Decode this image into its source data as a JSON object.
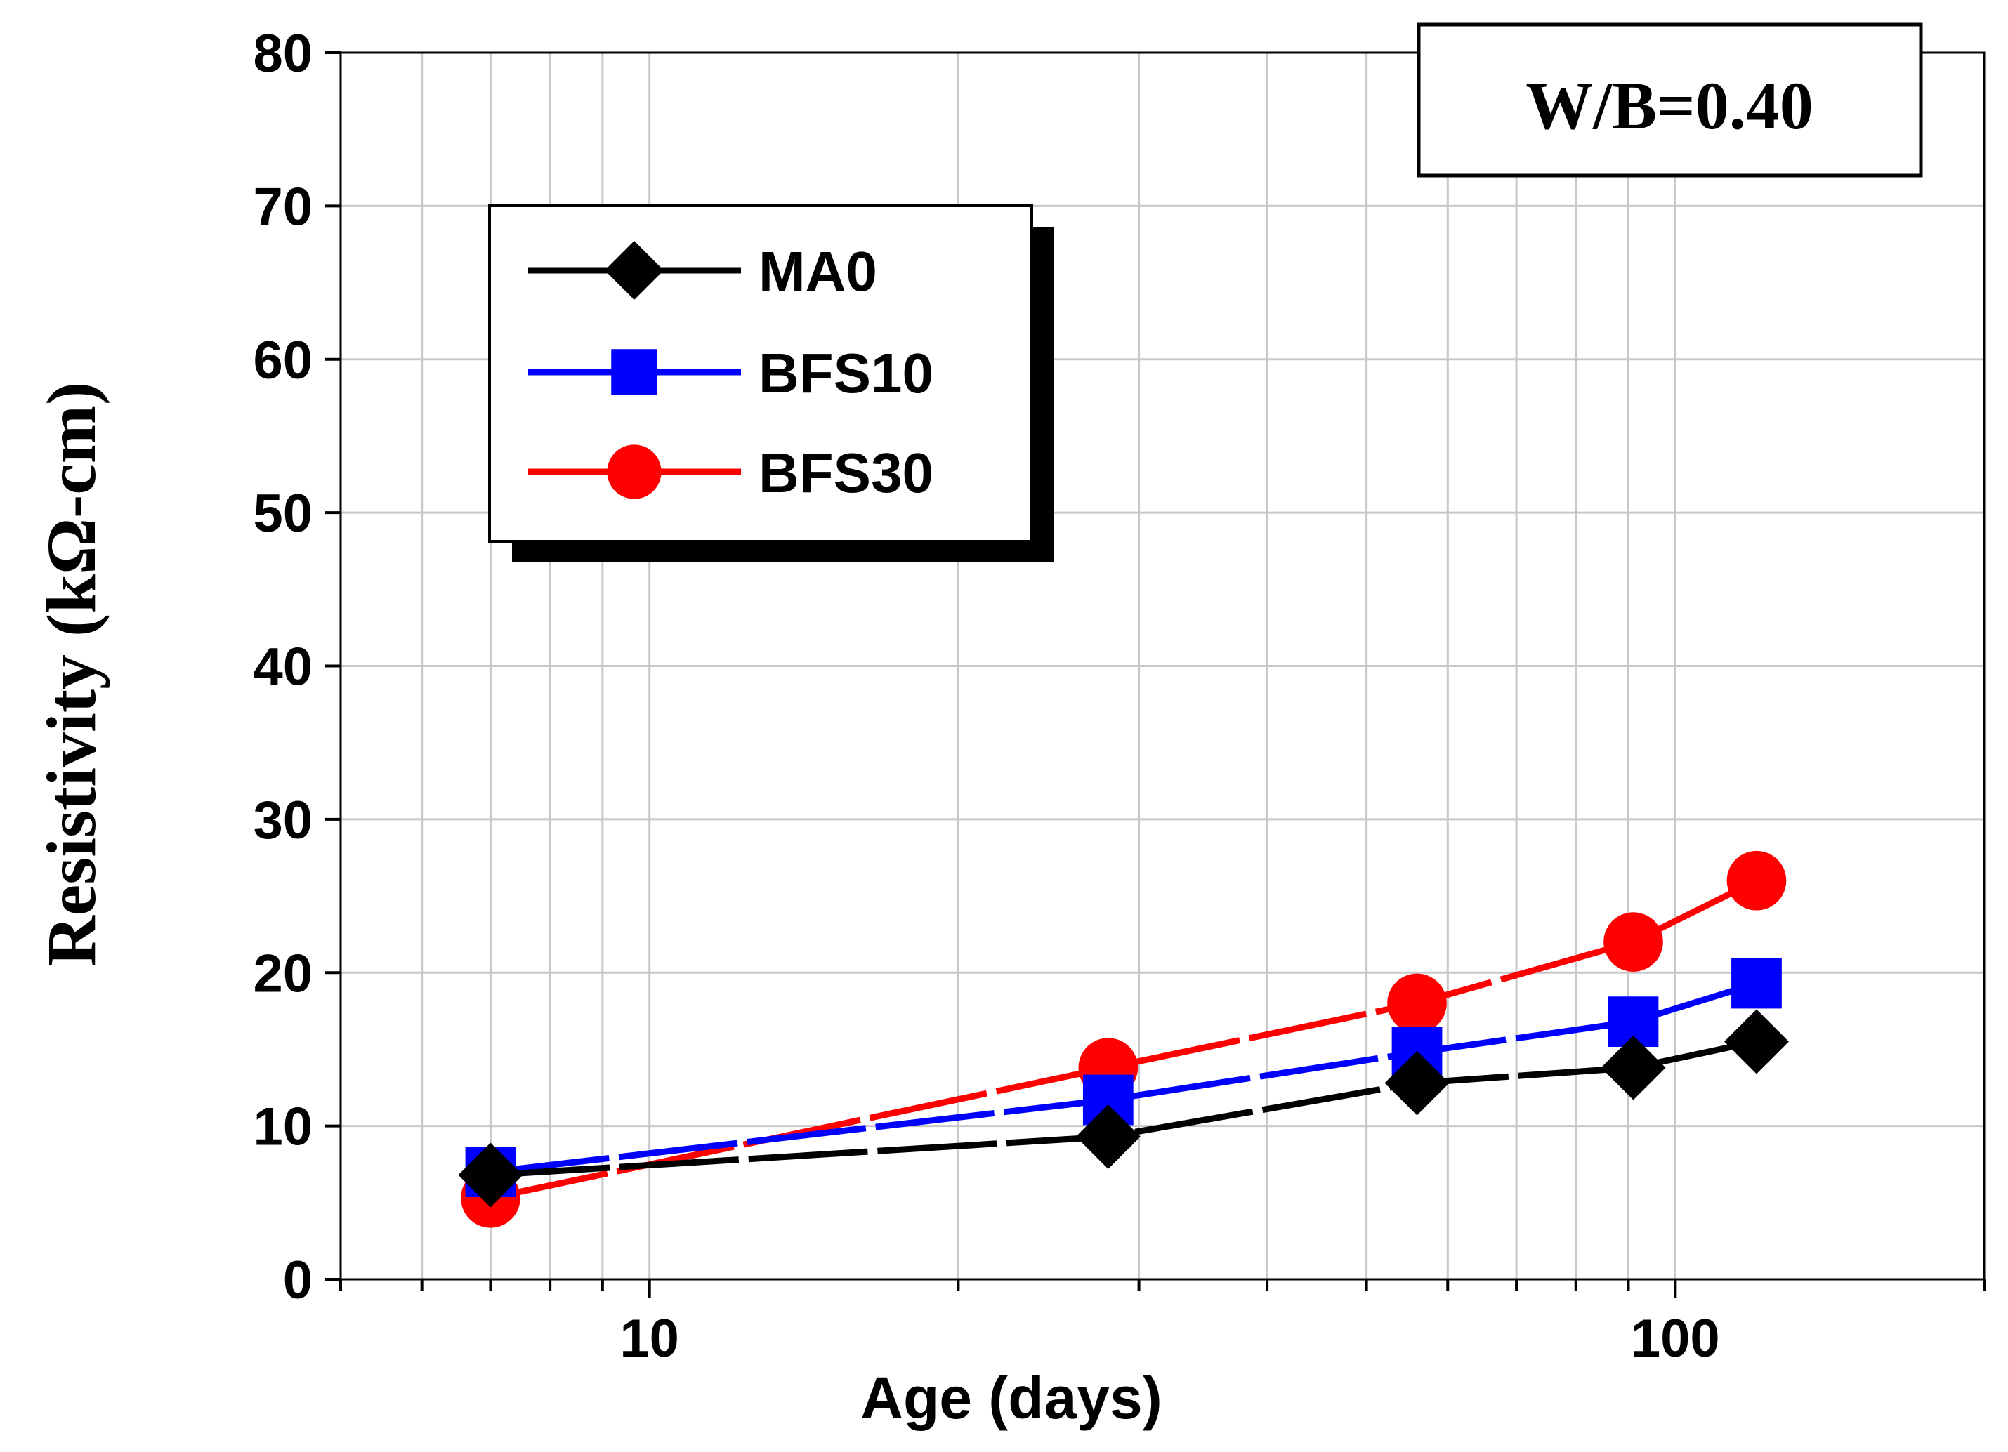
{
  "chart_data": {
    "type": "line",
    "xscale": "log",
    "xlabel": "Age (days)",
    "ylabel": "Resistivity (kΩ-cm)",
    "xlim": [
      5,
      200
    ],
    "ylim": [
      0,
      80
    ],
    "yticks": [
      0,
      10,
      20,
      30,
      40,
      50,
      60,
      70,
      80
    ],
    "xtick_labels": [
      {
        "value": 10,
        "label": "10"
      },
      {
        "value": 100,
        "label": "100"
      }
    ],
    "x": [
      7,
      28,
      56,
      91,
      120
    ],
    "series": [
      {
        "name": "MA0",
        "color": "#000000",
        "marker": "diamond",
        "values": [
          6.8,
          9.3,
          12.8,
          13.8,
          15.5
        ]
      },
      {
        "name": "BFS10",
        "color": "#0000ff",
        "marker": "square",
        "values": [
          7.0,
          11.7,
          14.8,
          16.8,
          19.3
        ]
      },
      {
        "name": "BFS30",
        "color": "#ff0000",
        "marker": "circle",
        "values": [
          5.3,
          13.8,
          18.0,
          22.0,
          26.0
        ]
      }
    ],
    "annotation": "W/B=0.40",
    "grid": true,
    "legend_position": "top-left"
  }
}
